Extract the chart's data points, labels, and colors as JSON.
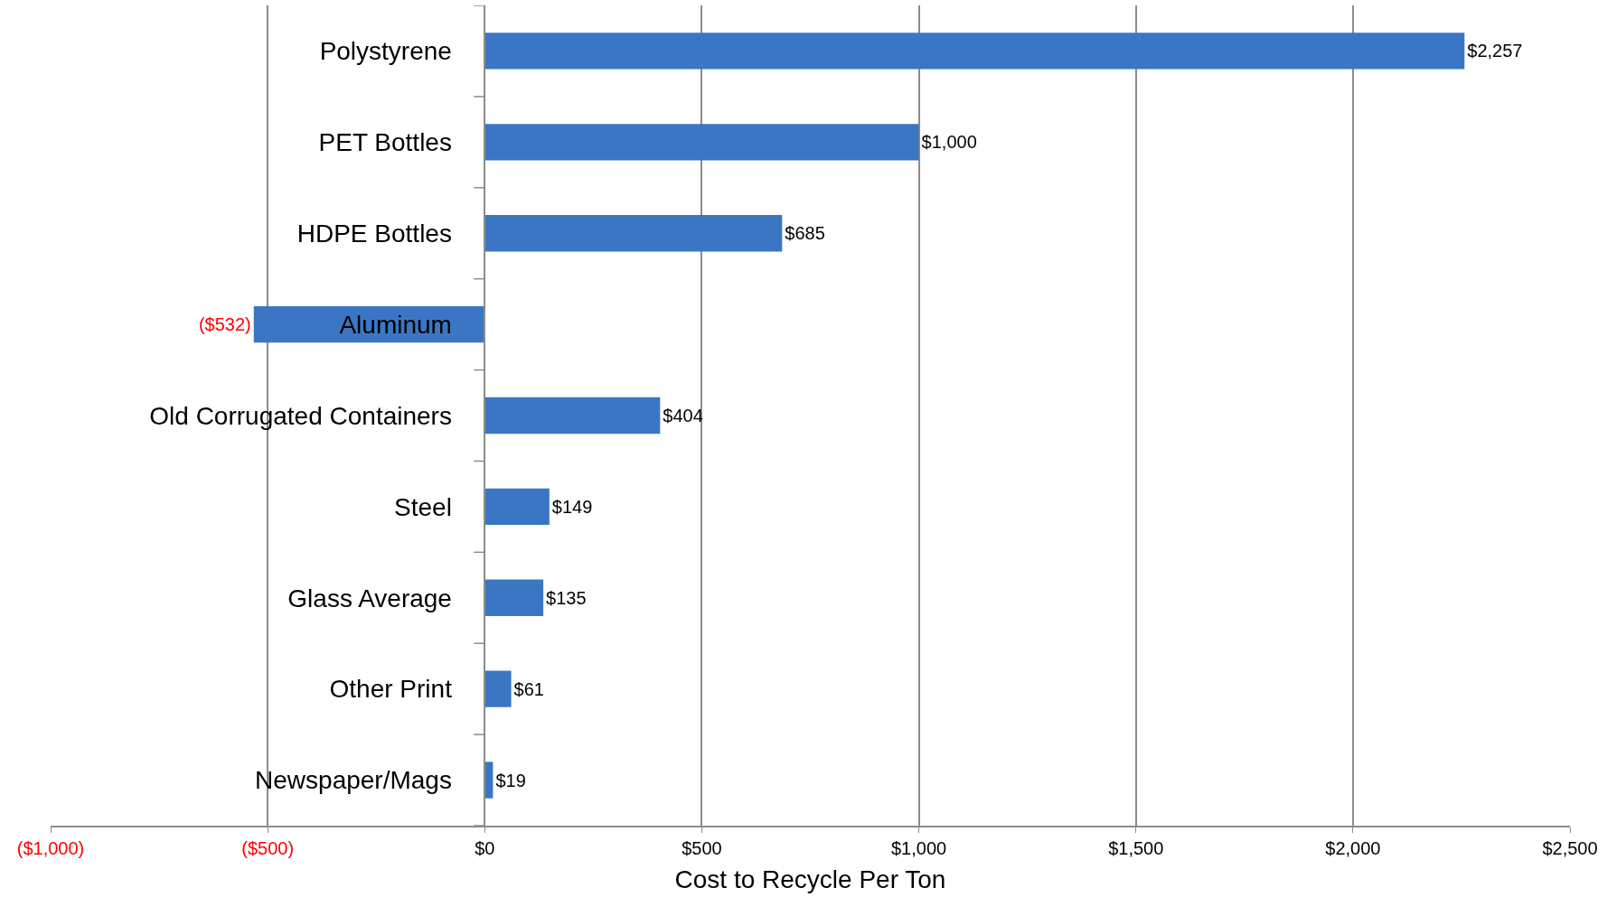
{
  "chart_data": {
    "type": "bar",
    "orientation": "horizontal",
    "xlabel": "Cost to Recycle Per Ton",
    "categories": [
      "Polystyrene",
      "PET Bottles",
      "HDPE Bottles",
      "Aluminum",
      "Old Corrugated Containers",
      "Steel",
      "Glass Average",
      "Other Print",
      "Newspaper/Mags"
    ],
    "values": [
      2257,
      1000,
      685,
      -532,
      404,
      149,
      135,
      61,
      19
    ],
    "value_labels": [
      "$2,257",
      "$1,000",
      "$685",
      "($532)",
      "$404",
      "$149",
      "$135",
      "$61",
      "$19"
    ],
    "color": "#3b76c4",
    "xlim": [
      -1000,
      2500
    ],
    "xticks": [
      {
        "value": -1000,
        "label": "($1,000)"
      },
      {
        "value": -500,
        "label": "($500)"
      },
      {
        "value": 0,
        "label": "$0"
      },
      {
        "value": 500,
        "label": "$500"
      },
      {
        "value": 1000,
        "label": "$1,000"
      },
      {
        "value": 1500,
        "label": "$1,500"
      },
      {
        "value": 2000,
        "label": "$2,000"
      },
      {
        "value": 2500,
        "label": "$2,500"
      }
    ],
    "grid": "x",
    "legend": false
  }
}
